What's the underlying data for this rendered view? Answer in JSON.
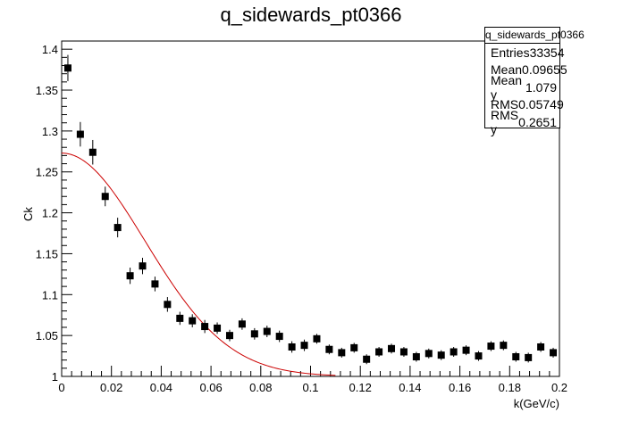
{
  "chart_data": {
    "type": "scatter",
    "title": "q_sidewards_pt0366",
    "xlabel": "k(GeV/c)",
    "ylabel": "Ck",
    "xlim": [
      0,
      0.2
    ],
    "ylim": [
      1,
      1.41
    ],
    "x_ticks": [
      0,
      0.02,
      0.04,
      0.06,
      0.08,
      0.1,
      0.12,
      0.14,
      0.16,
      0.18,
      0.2
    ],
    "x_tick_labels": [
      "0",
      "0.02",
      "0.04",
      "0.06",
      "0.08",
      "0.1",
      "0.12",
      "0.14",
      "0.16",
      "0.18",
      "0.2"
    ],
    "y_ticks": [
      1,
      1.05,
      1.1,
      1.15,
      1.2,
      1.25,
      1.3,
      1.35,
      1.4
    ],
    "y_tick_labels": [
      "1",
      "1.05",
      "1.1",
      "1.15",
      "1.2",
      "1.25",
      "1.3",
      "1.35",
      "1.4"
    ],
    "grid": false,
    "series": [
      {
        "kind": "points_with_errors",
        "color": "#000000",
        "x": [
          0.0025,
          0.0075,
          0.0125,
          0.0175,
          0.0225,
          0.0275,
          0.0325,
          0.0375,
          0.0425,
          0.0475,
          0.0525,
          0.0575,
          0.0625,
          0.0675,
          0.0725,
          0.0775,
          0.0825,
          0.0875,
          0.0925,
          0.0975,
          0.1025,
          0.1075,
          0.1125,
          0.1175,
          0.1225,
          0.1275,
          0.1325,
          0.1375,
          0.1425,
          0.1475,
          0.1525,
          0.1575,
          0.1625,
          0.1675,
          0.1725,
          0.1775,
          0.1825,
          0.1875,
          0.1925,
          0.1975
        ],
        "y": [
          1.377,
          1.296,
          1.274,
          1.22,
          1.182,
          1.123,
          1.135,
          1.113,
          1.088,
          1.071,
          1.068,
          1.061,
          1.059,
          1.05,
          1.064,
          1.052,
          1.055,
          1.049,
          1.036,
          1.038,
          1.046,
          1.033,
          1.029,
          1.035,
          1.021,
          1.03,
          1.034,
          1.03,
          1.024,
          1.028,
          1.026,
          1.03,
          1.032,
          1.025,
          1.037,
          1.038,
          1.024,
          1.023,
          1.036,
          1.029
        ],
        "err": [
          0.016,
          0.015,
          0.015,
          0.012,
          0.012,
          0.01,
          0.01,
          0.009,
          0.009,
          0.008,
          0.008,
          0.008,
          0.007,
          0.007,
          0.007,
          0.007,
          0.007,
          0.007,
          0.007,
          0.007,
          0.006,
          0.006,
          0.006,
          0.006,
          0.006,
          0.006,
          0.006,
          0.006,
          0.006,
          0.006,
          0.006,
          0.006,
          0.006,
          0.006,
          0.006,
          0.006,
          0.006,
          0.006,
          0.006,
          0.006
        ]
      },
      {
        "kind": "fit_curve",
        "color": "#cc0000",
        "function": "gaussian",
        "amplitude": 0.273,
        "sigma": 0.0335,
        "baseline": 1.0,
        "x_range": [
          0,
          0.11
        ]
      }
    ]
  },
  "stats_box": {
    "title": "q_sidewards_pt0366",
    "rows": [
      {
        "label": "Entries",
        "value": "33354"
      },
      {
        "label": "Mean",
        "value": "0.09655"
      },
      {
        "label": "Mean y",
        "value": "1.079"
      },
      {
        "label": "RMS",
        "value": "0.05749"
      },
      {
        "label": "RMS y",
        "value": "0.2651"
      }
    ]
  }
}
